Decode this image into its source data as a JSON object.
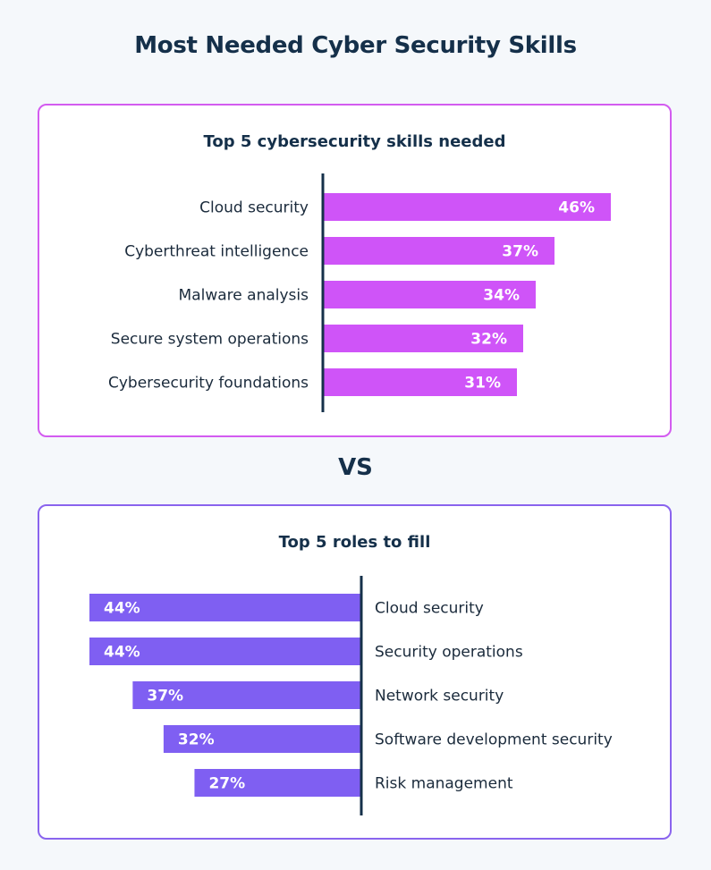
{
  "title": "Most Needed Cyber Security Skills",
  "separator": "VS",
  "colors": {
    "skills_bar": "#cf54f8",
    "roles_bar": "#7f5ff2",
    "axis": "#15304a"
  },
  "chart_data": [
    {
      "type": "bar",
      "orientation": "horizontal",
      "title": "Top 5 cybersecurity skills needed",
      "categories": [
        "Cloud security",
        "Cyberthreat intelligence",
        "Malware analysis",
        "Secure system operations",
        "Cybersecurity foundations"
      ],
      "values": [
        46,
        37,
        34,
        32,
        31
      ],
      "value_labels": [
        "46%",
        "37%",
        "34%",
        "32%",
        "31%"
      ],
      "unit": "%",
      "direction": "right",
      "xlim": [
        0,
        46
      ]
    },
    {
      "type": "bar",
      "orientation": "horizontal",
      "title": "Top 5 roles to fill",
      "categories": [
        "Cloud security",
        "Security operations",
        "Network security",
        "Software development security",
        "Risk management"
      ],
      "values": [
        44,
        44,
        37,
        32,
        27
      ],
      "value_labels": [
        "44%",
        "44%",
        "37%",
        "32%",
        "27%"
      ],
      "unit": "%",
      "direction": "left",
      "xlim": [
        0,
        44
      ]
    }
  ]
}
